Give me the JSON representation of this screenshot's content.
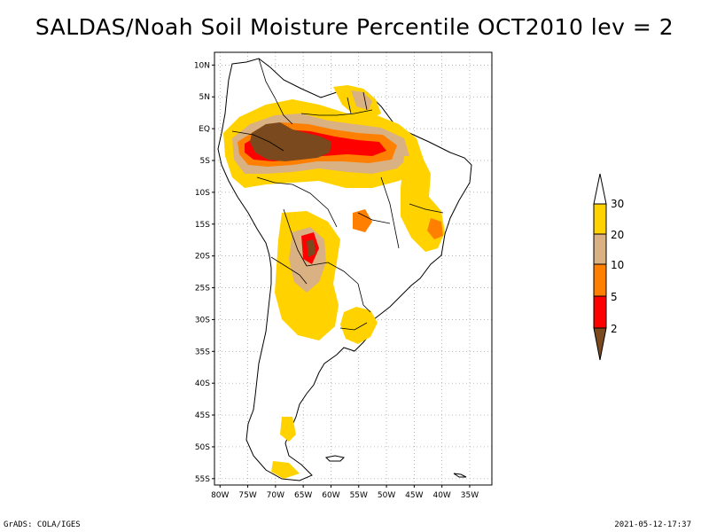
{
  "title": "SALDAS/Noah Soil Moisture Percentile OCT2010 lev = 2",
  "footer": {
    "left": "GrADS: COLA/IGES",
    "right": "2021-05-12-17:37"
  },
  "map": {
    "lon_range": [
      -81,
      -31
    ],
    "lat_range": [
      -56,
      12
    ],
    "lat_ticks": [
      {
        "value": 10,
        "label": "10N"
      },
      {
        "value": 5,
        "label": "5N"
      },
      {
        "value": 0,
        "label": "EQ"
      },
      {
        "value": -5,
        "label": "5S"
      },
      {
        "value": -10,
        "label": "10S"
      },
      {
        "value": -15,
        "label": "15S"
      },
      {
        "value": -20,
        "label": "20S"
      },
      {
        "value": -25,
        "label": "25S"
      },
      {
        "value": -30,
        "label": "30S"
      },
      {
        "value": -35,
        "label": "35S"
      },
      {
        "value": -40,
        "label": "40S"
      },
      {
        "value": -45,
        "label": "45S"
      },
      {
        "value": -50,
        "label": "50S"
      },
      {
        "value": -55,
        "label": "55S"
      }
    ],
    "lon_ticks": [
      {
        "value": -80,
        "label": "80W"
      },
      {
        "value": -75,
        "label": "75W"
      },
      {
        "value": -70,
        "label": "70W"
      },
      {
        "value": -65,
        "label": "65W"
      },
      {
        "value": -60,
        "label": "60W"
      },
      {
        "value": -55,
        "label": "55W"
      },
      {
        "value": -50,
        "label": "50W"
      },
      {
        "value": -45,
        "label": "45W"
      },
      {
        "value": -40,
        "label": "40W"
      },
      {
        "value": -35,
        "label": "35W"
      }
    ],
    "grid": "dotted",
    "colorbar": {
      "placement": "right",
      "classes": [
        {
          "color": "#7a4a1e",
          "range": "below 2"
        },
        {
          "color": "#ff0000",
          "range": "2-5"
        },
        {
          "color": "#ff8000",
          "range": "5-10"
        },
        {
          "color": "#d9b183",
          "range": "10-20"
        },
        {
          "color": "#ffd200",
          "range": "20-30"
        },
        {
          "color": "#ffffff",
          "range": "above 30"
        }
      ],
      "labels": [
        "2",
        "5",
        "10",
        "20",
        "30"
      ]
    }
  }
}
